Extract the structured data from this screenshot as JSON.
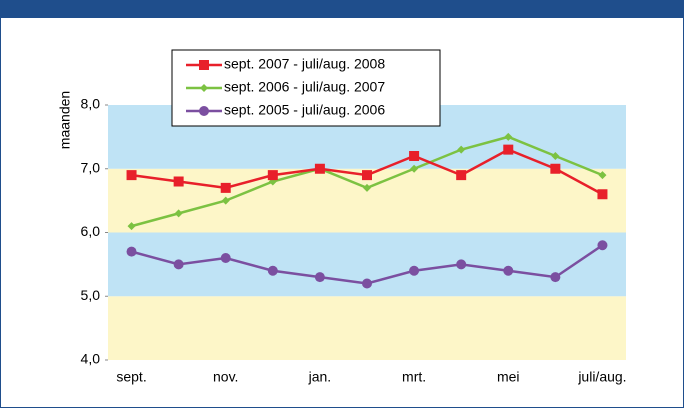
{
  "chart_data": {
    "type": "line",
    "y_label": "maanden",
    "categories": [
      "sept.",
      null,
      "nov.",
      null,
      "jan.",
      null,
      "mrt.",
      null,
      "mei",
      null,
      "juli/aug."
    ],
    "series": [
      {
        "name": "sept. 2007 - juli/aug. 2008",
        "color": "#e8202a",
        "marker": "square",
        "values": [
          6.9,
          6.8,
          6.7,
          6.9,
          7.0,
          6.9,
          7.2,
          6.9,
          7.3,
          7.0,
          6.6
        ]
      },
      {
        "name": "sept. 2006 - juli/aug. 2007",
        "color": "#7cc242",
        "marker": "diamond",
        "values": [
          6.1,
          6.3,
          6.5,
          6.8,
          7.0,
          6.7,
          7.0,
          7.3,
          7.5,
          7.2,
          6.9
        ]
      },
      {
        "name": "sept. 2005 - juli/aug. 2006",
        "color": "#7b4fa0",
        "marker": "circle",
        "values": [
          5.7,
          5.5,
          5.6,
          5.4,
          5.3,
          5.2,
          5.4,
          5.5,
          5.4,
          5.3,
          5.8
        ]
      }
    ],
    "ylim": [
      4,
      8
    ],
    "yticks": [
      {
        "value": 4,
        "label": "4,0"
      },
      {
        "value": 5,
        "label": "5,0"
      },
      {
        "value": 6,
        "label": "6,0"
      },
      {
        "value": 7,
        "label": "7,0"
      },
      {
        "value": 8,
        "label": "8,0"
      }
    ],
    "band_colors": [
      "#fdf6c8",
      "#bfe3f5"
    ],
    "legend": "top-left"
  }
}
